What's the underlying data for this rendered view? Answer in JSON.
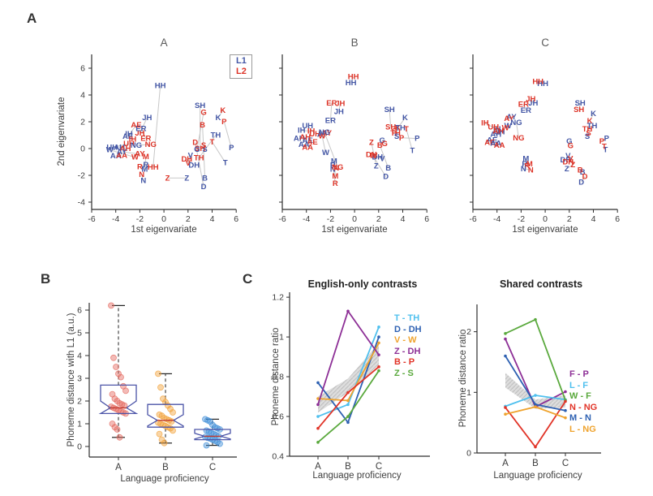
{
  "panels": {
    "a": "A",
    "b": "B",
    "c": "C"
  },
  "scatter_labels": {
    "ylabel": "2nd eigenvariate",
    "xlabel": "1st eigenvariate",
    "legend_l1": "L1",
    "legend_l2": "L2"
  },
  "colors": {
    "l1_blue": "#4356a5",
    "l2_red": "#dd3327",
    "connector": "#c7c7c7",
    "axis": "#2e2e2e",
    "tick_text": "#3c3c3c",
    "band_gray": "#d7d7d7",
    "box_outline": "#4c55a8",
    "box_median": "#c0392f"
  },
  "chart_data": [
    {
      "type": "scatter",
      "title": "A",
      "xlabel": "1st eigenvariate",
      "ylabel": "2nd eigenvariate",
      "xlim": [
        -6,
        6
      ],
      "ylim": [
        -5,
        7
      ],
      "xticks": [
        -6,
        -4,
        -2,
        0,
        2,
        4,
        6
      ],
      "yticks": [
        -4,
        -2,
        0,
        2,
        4,
        6
      ],
      "legend": [
        "L1",
        "L2"
      ],
      "pairs": [
        [
          "HH",
          -0.3,
          4.7,
          -0.9,
          -1.4
        ],
        [
          "JH",
          -1.4,
          2.3,
          -2.0,
          1.15
        ],
        [
          "ER",
          -1.9,
          1.5,
          -1.5,
          0.75
        ],
        [
          "AE",
          -3.0,
          0.9,
          -2.3,
          1.75
        ],
        [
          "IH",
          -2.9,
          1.1,
          -2.6,
          0.7
        ],
        [
          "UH",
          -4.3,
          0.1,
          -2.9,
          0.35
        ],
        [
          "AH",
          -3.7,
          0.1,
          -3.2,
          0.0
        ],
        [
          "AA",
          -4.0,
          -0.55,
          -3.5,
          -0.5
        ],
        [
          "AY",
          -3.5,
          -0.25,
          -2.0,
          -0.4
        ],
        [
          "W",
          -4.5,
          -0.1,
          -2.4,
          -0.65
        ],
        [
          "R",
          -1.5,
          -1.2,
          -2.0,
          -1.35
        ],
        [
          "M",
          -1.6,
          -1.55,
          -1.5,
          -0.6
        ],
        [
          "N",
          -1.7,
          -2.4,
          -1.85,
          -1.95
        ],
        [
          "NG",
          -2.3,
          0.25,
          -1.1,
          0.3
        ],
        [
          "SH",
          3.0,
          3.2,
          3.0,
          0.0
        ],
        [
          "K",
          4.5,
          2.3,
          4.9,
          2.85
        ],
        [
          "P",
          5.6,
          0.05,
          5.0,
          2.0
        ],
        [
          "B",
          3.4,
          -2.2,
          3.2,
          1.75
        ],
        [
          "G",
          2.75,
          -0.05,
          3.3,
          2.7
        ],
        [
          "TH",
          4.3,
          1.0,
          2.9,
          -0.7
        ],
        [
          "T",
          5.1,
          -1.05,
          4.0,
          0.5
        ],
        [
          "D",
          3.3,
          -2.85,
          2.6,
          0.45
        ],
        [
          "DH",
          2.5,
          -1.25,
          1.9,
          -0.8
        ],
        [
          "S",
          3.4,
          -0.05,
          3.3,
          0.25
        ],
        [
          "Z",
          1.9,
          -2.2,
          0.3,
          -2.2
        ],
        [
          "V",
          2.2,
          -0.5,
          2.0,
          -1.1
        ]
      ]
    },
    {
      "type": "scatter",
      "title": "B",
      "xlabel": "1st eigenvariate",
      "xlim": [
        -6,
        6
      ],
      "ylim": [
        -5,
        7
      ],
      "xticks": [
        -6,
        -4,
        -2,
        0,
        2,
        4,
        6
      ],
      "yticks": [
        -4,
        -2,
        0,
        2,
        4,
        6
      ],
      "pairs": [
        [
          "HH",
          -0.3,
          4.9,
          -0.1,
          5.35
        ],
        [
          "JH",
          -1.3,
          2.75,
          -1.2,
          3.35
        ],
        [
          "ER",
          -2.0,
          2.1,
          -1.9,
          3.4
        ],
        [
          "AE",
          -3.9,
          0.6,
          -3.5,
          0.5
        ],
        [
          "IH",
          -4.4,
          1.35,
          -3.6,
          1.3
        ],
        [
          "UH",
          -3.9,
          1.7,
          -3.3,
          1.1
        ],
        [
          "AH",
          -4.6,
          0.75,
          -4.1,
          0.85
        ],
        [
          "AA",
          -4.2,
          0.3,
          -3.9,
          0.1
        ],
        [
          "AY",
          -2.7,
          1.05,
          -2.3,
          1.15
        ],
        [
          "W",
          -2.4,
          -0.3,
          -2.7,
          0.95
        ],
        [
          "R",
          -1.8,
          -1.25,
          -1.6,
          -2.6
        ],
        [
          "M",
          -1.7,
          -0.95,
          -1.6,
          -2.05
        ],
        [
          "N",
          -1.8,
          -1.55,
          -1.5,
          -1.45
        ],
        [
          "NG",
          -2.5,
          1.2,
          -1.4,
          -1.4
        ],
        [
          "SH",
          2.9,
          2.9,
          3.0,
          1.6
        ],
        [
          "K",
          4.2,
          2.3,
          3.6,
          1.55
        ],
        [
          "P",
          5.2,
          0.75,
          3.9,
          0.8
        ],
        [
          "B",
          2.8,
          -1.45,
          2.1,
          0.25
        ],
        [
          "G",
          2.3,
          0.6,
          2.5,
          0.35
        ],
        [
          "TH",
          3.8,
          1.55,
          3.4,
          1.15
        ],
        [
          "T",
          4.8,
          -0.15,
          4.3,
          1.45
        ],
        [
          "D",
          2.6,
          -2.1,
          1.5,
          -0.5
        ],
        [
          "DH",
          1.9,
          -0.65,
          1.4,
          -0.45
        ],
        [
          "S",
          3.5,
          0.9,
          3.3,
          1.3
        ],
        [
          "Z",
          1.8,
          -1.3,
          1.4,
          0.45
        ],
        [
          "V",
          2.3,
          -0.75,
          1.7,
          -0.55
        ]
      ]
    },
    {
      "type": "scatter",
      "title": "C",
      "xlabel": "1st eigenvariate",
      "xlim": [
        -6,
        6
      ],
      "ylim": [
        -5,
        7
      ],
      "xticks": [
        -6,
        -4,
        -2,
        0,
        2,
        4,
        6
      ],
      "yticks": [
        -4,
        -2,
        0,
        2,
        4,
        6
      ],
      "pairs": [
        [
          "HH",
          -0.2,
          4.85,
          -0.6,
          5.0
        ],
        [
          "JH",
          -1.0,
          3.4,
          -1.2,
          3.7
        ],
        [
          "ER",
          -1.6,
          2.85,
          -1.8,
          3.3
        ],
        [
          "AE",
          -4.4,
          0.65,
          -4.6,
          0.45
        ],
        [
          "IH",
          -4.0,
          1.45,
          -5.0,
          1.9
        ],
        [
          "UH",
          -3.8,
          1.25,
          -4.3,
          1.6
        ],
        [
          "AH",
          -4.1,
          1.05,
          -3.9,
          1.3
        ],
        [
          "AA",
          -4.1,
          0.4,
          -3.8,
          0.25
        ],
        [
          "AY",
          -2.8,
          2.35,
          -3.0,
          2.25
        ],
        [
          "W",
          -3.1,
          1.7,
          -3.3,
          1.55
        ],
        [
          "R",
          -1.7,
          -1.15,
          -1.5,
          -1.3
        ],
        [
          "M",
          -1.6,
          -0.75,
          -1.3,
          -1.15
        ],
        [
          "N",
          -1.8,
          -1.5,
          -1.2,
          -1.6
        ],
        [
          "NG",
          -2.4,
          1.95,
          -2.2,
          0.8
        ],
        [
          "SH",
          2.9,
          3.4,
          2.8,
          2.9
        ],
        [
          "K",
          4.0,
          2.6,
          3.7,
          2.05
        ],
        [
          "P",
          5.1,
          0.75,
          4.7,
          0.55
        ],
        [
          "B",
          3.1,
          -1.75,
          2.9,
          -1.6
        ],
        [
          "G",
          2.0,
          0.55,
          2.1,
          0.2
        ],
        [
          "TH",
          3.9,
          1.7,
          3.5,
          1.45
        ],
        [
          "T",
          5.0,
          -0.1,
          4.9,
          0.15
        ],
        [
          "D",
          3.0,
          -2.5,
          3.3,
          -2.1
        ],
        [
          "DH",
          1.7,
          -0.85,
          1.9,
          -1.0
        ],
        [
          "S",
          3.5,
          0.9,
          3.6,
          1.15
        ],
        [
          "Z",
          1.8,
          -1.5,
          2.3,
          -1.2
        ],
        [
          "V",
          1.9,
          -0.55,
          2.1,
          -0.75
        ]
      ]
    },
    {
      "type": "box",
      "ylabel": "Phoneme distance with L1 (a.u.)",
      "xlabel": "Language proficiency",
      "yticks": [
        0,
        1,
        2,
        3,
        4,
        5,
        6
      ],
      "ylim": [
        -0.45,
        6.7
      ],
      "groups": [
        {
          "label": "A",
          "point_color": "#e4695f",
          "whislo": 0.4,
          "q1": 1.45,
          "med": 1.7,
          "q3": 2.7,
          "whishi": 6.2,
          "notch_lo": 1.45,
          "notch_hi": 2.0,
          "points": [
            6.2,
            3.9,
            3.5,
            3.2,
            3.05,
            2.65,
            2.45,
            2.3,
            2.1,
            2.0,
            1.9,
            1.85,
            1.8,
            1.75,
            1.7,
            1.65,
            1.6,
            1.55,
            1.5,
            1.45,
            1.0,
            0.85,
            0.75,
            0.4
          ]
        },
        {
          "label": "B",
          "point_color": "#f2a13a",
          "whislo": 0.15,
          "q1": 0.85,
          "med": 1.15,
          "q3": 1.85,
          "whishi": 3.2,
          "notch_lo": 0.9,
          "notch_hi": 1.4,
          "points": [
            3.2,
            2.6,
            2.1,
            1.95,
            1.8,
            1.65,
            1.5,
            1.4,
            1.35,
            1.25,
            1.2,
            1.15,
            1.1,
            1.05,
            1.0,
            0.95,
            0.9,
            0.85,
            0.8,
            0.7,
            0.55,
            0.3,
            0.15
          ]
        },
        {
          "label": "C",
          "point_color": "#3f8ed8",
          "whislo": 0.05,
          "q1": 0.3,
          "med": 0.45,
          "q3": 0.75,
          "whishi": 1.2,
          "notch_lo": 0.33,
          "notch_hi": 0.58,
          "points": [
            1.2,
            1.15,
            1.1,
            0.95,
            0.85,
            0.8,
            0.75,
            0.7,
            0.65,
            0.6,
            0.55,
            0.5,
            0.45,
            0.42,
            0.38,
            0.35,
            0.3,
            0.25,
            0.2,
            0.12,
            0.05
          ]
        }
      ]
    },
    {
      "type": "line",
      "title": "English-only contrasts",
      "ylabel": "Phoneme distance ratio",
      "xlabel": "Language proficiency",
      "categories": [
        "A",
        "B",
        "C"
      ],
      "ylim": [
        0.4,
        1.225
      ],
      "yticks": [
        0.4,
        0.6,
        0.8,
        1,
        1.2
      ],
      "band": {
        "lower": [
          0.62,
          0.72,
          0.86
        ],
        "upper": [
          0.7,
          0.79,
          0.97
        ]
      },
      "series": [
        {
          "name": "T - TH",
          "color": "#4fc0ee",
          "values": [
            0.6,
            0.66,
            1.05
          ]
        },
        {
          "name": "D - DH",
          "color": "#2e61b2",
          "values": [
            0.77,
            0.57,
            1.0
          ]
        },
        {
          "name": "V - W",
          "color": "#efa32e",
          "values": [
            0.69,
            0.68,
            0.97
          ]
        },
        {
          "name": "Z - DH",
          "color": "#8d2f96",
          "values": [
            0.66,
            1.13,
            0.91
          ]
        },
        {
          "name": "B - P",
          "color": "#e13428",
          "values": [
            0.54,
            0.72,
            0.85
          ]
        },
        {
          "name": "Z - S",
          "color": "#5aa93d",
          "values": [
            0.47,
            0.6,
            0.83
          ]
        }
      ]
    },
    {
      "type": "line",
      "title": "Shared contrasts",
      "ylabel": "Phoneme distance ratio",
      "xlabel": "Language proficiency",
      "categories": [
        "A",
        "B",
        "C"
      ],
      "ylim": [
        0,
        2.45
      ],
      "yticks": [
        0,
        1,
        2
      ],
      "band": {
        "lower": [
          1.08,
          0.73,
          0.75
        ],
        "upper": [
          1.32,
          0.88,
          0.95
        ]
      },
      "series": [
        {
          "name": "F - P",
          "color": "#8d2f96",
          "values": [
            1.88,
            0.76,
            1.01
          ]
        },
        {
          "name": "L - F",
          "color": "#4fc0ee",
          "values": [
            0.77,
            0.95,
            0.88
          ]
        },
        {
          "name": "W - F",
          "color": "#5aa93d",
          "values": [
            1.97,
            2.2,
            0.87
          ]
        },
        {
          "name": "N - NG",
          "color": "#e13428",
          "values": [
            0.75,
            0.1,
            0.85
          ]
        },
        {
          "name": "M - N",
          "color": "#2e61b2",
          "values": [
            1.6,
            0.8,
            0.7
          ]
        },
        {
          "name": "L - NG",
          "color": "#efa32e",
          "values": [
            0.64,
            0.76,
            0.58
          ]
        }
      ]
    }
  ]
}
